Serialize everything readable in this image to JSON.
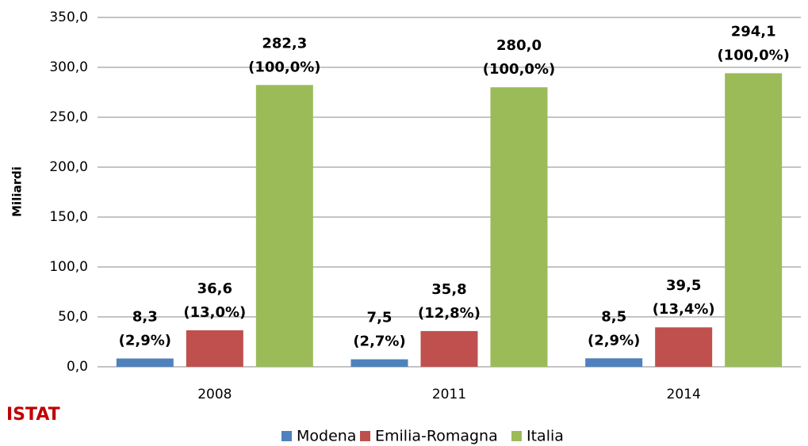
{
  "chart_data": {
    "type": "bar",
    "y_label": "Miliardi",
    "source": "ISTAT",
    "categories": [
      "2008",
      "2011",
      "2014"
    ],
    "series": [
      {
        "name": "Modena",
        "color": "#4f81bd",
        "values": [
          8.3,
          7.5,
          8.5
        ],
        "value_labels": [
          "8,3",
          "7,5",
          "8,5"
        ],
        "shares": [
          2.9,
          2.7,
          2.9
        ],
        "share_labels": [
          "(2,9%)",
          "(2,7%)",
          "(2,9%)"
        ]
      },
      {
        "name": "Emilia-Romagna",
        "color": "#c0504d",
        "values": [
          36.6,
          35.8,
          39.5
        ],
        "value_labels": [
          "36,6",
          "35,8",
          "39,5"
        ],
        "shares": [
          13.0,
          12.8,
          13.4
        ],
        "share_labels": [
          "(13,0%)",
          "(12,8%)",
          "(13,4%)"
        ]
      },
      {
        "name": "Italia",
        "color": "#9bbb59",
        "values": [
          282.3,
          280.0,
          294.1
        ],
        "value_labels": [
          "282,3",
          "280,0",
          "294,1"
        ],
        "shares": [
          100.0,
          100.0,
          100.0
        ],
        "share_labels": [
          "(100,0%)",
          "(100,0%)",
          "(100,0%)"
        ]
      }
    ],
    "ylim": [
      0,
      350
    ],
    "yticks": [
      {
        "value": 0,
        "label": "0,0"
      },
      {
        "value": 50,
        "label": "50,0"
      },
      {
        "value": 100,
        "label": "100,0"
      },
      {
        "value": 150,
        "label": "150,0"
      },
      {
        "value": 200,
        "label": "200,0"
      },
      {
        "value": 250,
        "label": "250,0"
      },
      {
        "value": 300,
        "label": "300,0"
      },
      {
        "value": 350,
        "label": "350,0"
      }
    ],
    "grid": true,
    "legend": "bottom"
  }
}
